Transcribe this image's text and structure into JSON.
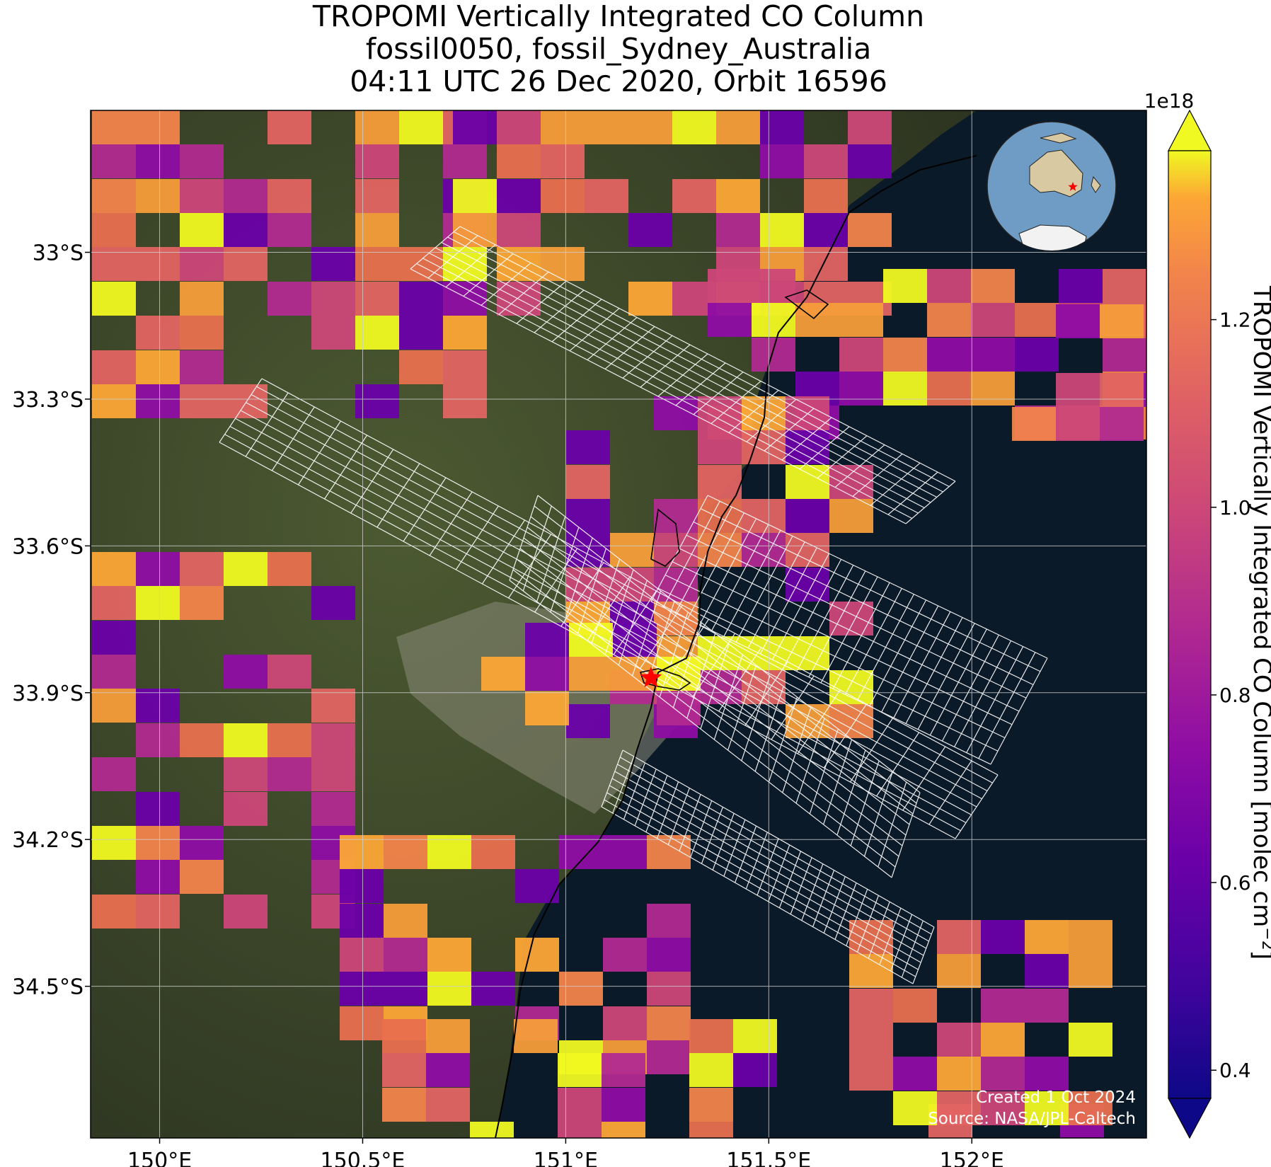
{
  "title": {
    "line1": "TROPOMI Vertically Integrated CO Column",
    "line2": "fossil0050, fossil_Sydney_Australia",
    "line3": "04:11 UTC 26 Dec 2020, Orbit 16596"
  },
  "map": {
    "extent": {
      "lon_min": 149.83,
      "lon_max": 152.43,
      "lat_min": -34.81,
      "lat_max": -32.71
    },
    "lon_ticks": [
      {
        "value": 150.0,
        "label": "150°E"
      },
      {
        "value": 150.5,
        "label": "150.5°E"
      },
      {
        "value": 151.0,
        "label": "151°E"
      },
      {
        "value": 151.5,
        "label": "151.5°E"
      },
      {
        "value": 152.0,
        "label": "152°E"
      }
    ],
    "lat_ticks": [
      {
        "value": -33.0,
        "label": "33°S"
      },
      {
        "value": -33.3,
        "label": "33.3°S"
      },
      {
        "value": -33.6,
        "label": "33.6°S"
      },
      {
        "value": -33.9,
        "label": "33.9°S"
      },
      {
        "value": -34.2,
        "label": "34.2°S"
      },
      {
        "value": -34.5,
        "label": "34.5°S"
      }
    ],
    "gridlines": true,
    "site_marker": {
      "lon": 151.21,
      "lat": -33.87,
      "symbol": "star",
      "color": "#ff0000"
    },
    "land_color": "#3a4228",
    "ocean_color": "#0b1a28"
  },
  "colorbar": {
    "label_main": "TROPOMI Vertically Integrated CO Column [molec cm",
    "label_sup": "−2",
    "label_end": "]",
    "exponent": "1e18",
    "vmin": 0.37,
    "vmax": 1.38,
    "ticks": [
      {
        "value": 0.4,
        "label": "0.4"
      },
      {
        "value": 0.6,
        "label": "0.6"
      },
      {
        "value": 0.8,
        "label": "0.8"
      },
      {
        "value": 1.0,
        "label": "1.0"
      },
      {
        "value": 1.2,
        "label": "1.2"
      }
    ],
    "colormap": "plasma",
    "extend": "both"
  },
  "credits": {
    "created": "Created 1 Oct 2024",
    "source": "Source: NASA/JPL-Caltech"
  },
  "inset_globe": {
    "ocean_color": "#6f9cc4",
    "land_color": "#d8c9a3",
    "marker_color": "#ff0000"
  }
}
